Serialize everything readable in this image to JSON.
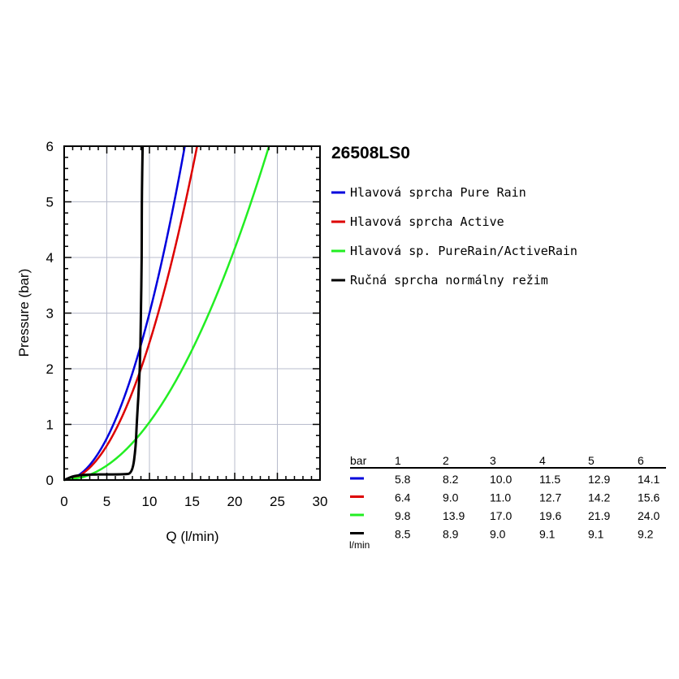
{
  "chart_data": {
    "type": "line",
    "model": "26508LS0",
    "xlabel": "Q (l/min)",
    "ylabel": "Pressure (bar)",
    "xlim": [
      0,
      30
    ],
    "ylim": [
      0,
      6
    ],
    "x_ticks": [
      "0",
      "5",
      "10",
      "15",
      "20",
      "25",
      "30"
    ],
    "y_ticks": [
      "0",
      "1",
      "2",
      "3",
      "4",
      "5",
      "6"
    ],
    "grid": true,
    "legend_position": "right",
    "series": [
      {
        "name": "Hlavová sprcha Pure Rain",
        "color": "#0000dd",
        "pressure": [
          0,
          1,
          2,
          3,
          4,
          5,
          6
        ],
        "flow": [
          0,
          5.8,
          8.2,
          10.0,
          11.5,
          12.9,
          14.1
        ]
      },
      {
        "name": "Hlavová sprcha Active",
        "color": "#dd0000",
        "pressure": [
          0,
          1,
          2,
          3,
          4,
          5,
          6
        ],
        "flow": [
          0,
          6.4,
          9.0,
          11.0,
          12.7,
          14.2,
          15.6
        ]
      },
      {
        "name": "Hlavová sp. PureRain/ActiveRain",
        "color": "#22ee22",
        "pressure": [
          0,
          1,
          2,
          3,
          4,
          5,
          6
        ],
        "flow": [
          0,
          9.8,
          13.9,
          17.0,
          19.6,
          21.9,
          24.0
        ]
      },
      {
        "name": "Ručná sprcha normálny režim",
        "color": "#000000",
        "pressure": [
          0,
          0.1,
          0.1,
          0.12,
          0.6,
          1,
          2,
          3,
          4,
          5,
          6
        ],
        "flow": [
          0,
          1.5,
          7.0,
          8.0,
          8.4,
          8.5,
          8.9,
          9.0,
          9.1,
          9.1,
          9.2
        ]
      }
    ],
    "table": {
      "header_label": "bar",
      "columns": [
        "1",
        "2",
        "3",
        "4",
        "5",
        "6"
      ],
      "unit_label": "l/min",
      "rows": [
        {
          "color": "#0000dd",
          "values": [
            "5.8",
            "8.2",
            "10.0",
            "11.5",
            "12.9",
            "14.1"
          ]
        },
        {
          "color": "#dd0000",
          "values": [
            "6.4",
            "9.0",
            "11.0",
            "12.7",
            "14.2",
            "15.6"
          ]
        },
        {
          "color": "#22ee22",
          "values": [
            "9.8",
            "13.9",
            "17.0",
            "19.6",
            "21.9",
            "24.0"
          ]
        },
        {
          "color": "#000000",
          "values": [
            "8.5",
            "8.9",
            "9.0",
            "9.1",
            "9.1",
            "9.2"
          ]
        }
      ]
    }
  }
}
